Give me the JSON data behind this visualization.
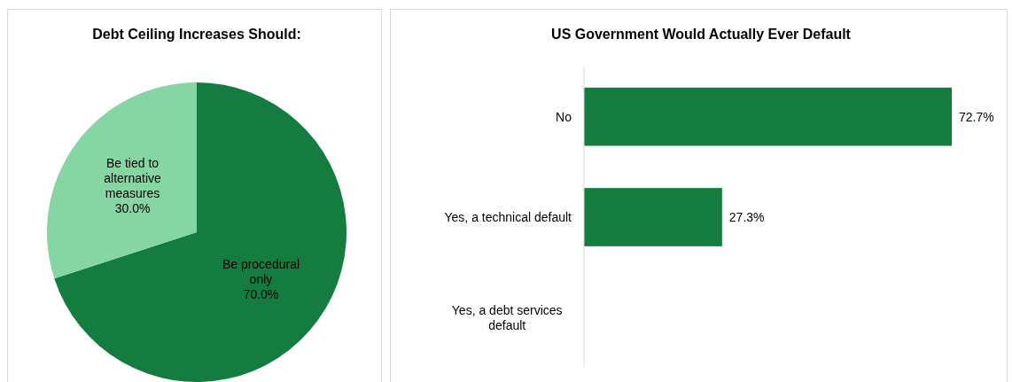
{
  "chart_data": [
    {
      "type": "pie",
      "title": "Debt Ceiling Increases Should:",
      "categories": [
        "Be procedural only",
        "Be tied to alternative measures"
      ],
      "values": [
        70.0,
        30.0
      ],
      "value_labels": [
        "70.0%",
        "30.0%"
      ],
      "colors": [
        "#157c3f",
        "#85d6a3"
      ],
      "data_labels": true
    },
    {
      "type": "bar",
      "title": "US Government Would Actually Ever Default",
      "orientation": "horizontal",
      "categories": [
        "No",
        "Yes, a technical default",
        "Yes, a debt services default"
      ],
      "values": [
        72.7,
        27.3,
        0
      ],
      "value_labels": [
        "72.7%",
        "27.3%",
        null
      ],
      "color": "#157c3f",
      "tick_labels": "y"
    }
  ]
}
